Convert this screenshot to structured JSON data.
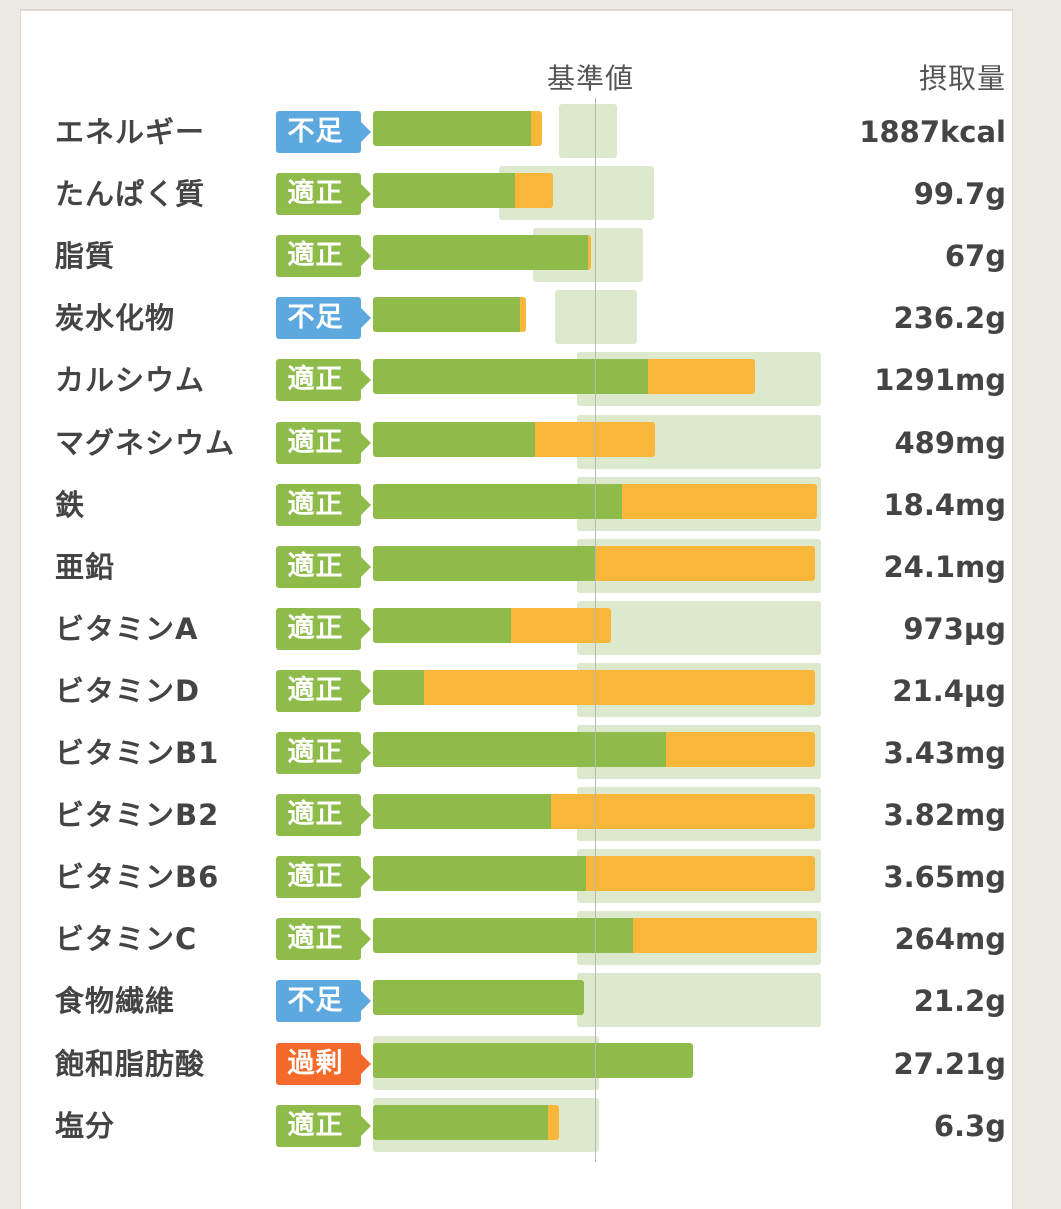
{
  "header": {
    "reference_label": "基準値",
    "intake_label": "摂取量"
  },
  "colors": {
    "shortage": "#5da9df",
    "adequate": "#8fbb4b",
    "excess": "#f46a2a",
    "bar_main": "#8fbb4b",
    "bar_extra": "#f8b73a",
    "range_band": "#dde9cc"
  },
  "chart_data": {
    "type": "bar",
    "orientation": "horizontal",
    "note_units": "bar lengths expressed as percent of reference value (reference line = 100)",
    "rows": [
      {
        "name": "エネルギー",
        "status": "不足",
        "status_key": "shortage",
        "value_text": "1887kcal",
        "green_pct": 71,
        "orange_pct": 76,
        "range_pct": [
          92,
          108
        ]
      },
      {
        "name": "たんぱく質",
        "status": "適正",
        "status_key": "adequate",
        "value_text": "99.7g",
        "green_pct": 64,
        "orange_pct": 81,
        "range_pct": [
          65,
          125
        ]
      },
      {
        "name": "脂質",
        "status": "適正",
        "status_key": "adequate",
        "value_text": "67g",
        "green_pct": 97,
        "orange_pct": 98,
        "range_pct": [
          80,
          120
        ]
      },
      {
        "name": "炭水化物",
        "status": "不足",
        "status_key": "shortage",
        "value_text": "236.2g",
        "green_pct": 66,
        "orange_pct": 69,
        "range_pct": [
          90,
          117
        ]
      },
      {
        "name": "カルシウム",
        "status": "適正",
        "status_key": "adequate",
        "value_text": "1291mg",
        "green_pct": 124,
        "orange_pct": 172,
        "range_pct": [
          100,
          200
        ]
      },
      {
        "name": "マグネシウム",
        "status": "適正",
        "status_key": "adequate",
        "value_text": "489mg",
        "green_pct": 73,
        "orange_pct": 127,
        "range_pct": [
          100,
          200
        ]
      },
      {
        "name": "鉄",
        "status": "適正",
        "status_key": "adequate",
        "value_text": "18.4mg",
        "green_pct": 112,
        "orange_pct": 200,
        "range_pct": [
          100,
          200
        ]
      },
      {
        "name": "亜鉛",
        "status": "適正",
        "status_key": "adequate",
        "value_text": "24.1mg",
        "green_pct": 100,
        "orange_pct": 199,
        "range_pct": [
          100,
          200
        ]
      },
      {
        "name": "ビタミンA",
        "status": "適正",
        "status_key": "adequate",
        "value_text": "973µg",
        "green_pct": 62,
        "orange_pct": 107,
        "range_pct": [
          100,
          200
        ]
      },
      {
        "name": "ビタミンD",
        "status": "適正",
        "status_key": "adequate",
        "value_text": "21.4µg",
        "green_pct": 23,
        "orange_pct": 199,
        "range_pct": [
          100,
          200
        ]
      },
      {
        "name": "ビタミンB1",
        "status": "適正",
        "status_key": "adequate",
        "value_text": "3.43mg",
        "green_pct": 132,
        "orange_pct": 199,
        "range_pct": [
          100,
          200
        ]
      },
      {
        "name": "ビタミンB2",
        "status": "適正",
        "status_key": "adequate",
        "value_text": "3.82mg",
        "green_pct": 80,
        "orange_pct": 199,
        "range_pct": [
          100,
          200
        ]
      },
      {
        "name": "ビタミンB6",
        "status": "適正",
        "status_key": "adequate",
        "value_text": "3.65mg",
        "green_pct": 96,
        "orange_pct": 199,
        "range_pct": [
          100,
          200
        ]
      },
      {
        "name": "ビタミンC",
        "status": "適正",
        "status_key": "adequate",
        "value_text": "264mg",
        "green_pct": 117,
        "orange_pct": 200,
        "range_pct": [
          100,
          200
        ]
      },
      {
        "name": "食物繊維",
        "status": "不足",
        "status_key": "shortage",
        "value_text": "21.2g",
        "green_pct": 95,
        "orange_pct": 95,
        "range_pct": [
          100,
          200
        ]
      },
      {
        "name": "飽和脂肪酸",
        "status": "過剰",
        "status_key": "excess",
        "value_text": "27.21g",
        "green_pct": 144,
        "orange_pct": 144,
        "range_pct": [
          0,
          100
        ]
      },
      {
        "name": "塩分",
        "status": "適正",
        "status_key": "adequate",
        "value_text": "6.3g",
        "green_pct": 79,
        "orange_pct": 84,
        "range_pct": [
          0,
          100
        ]
      }
    ]
  }
}
